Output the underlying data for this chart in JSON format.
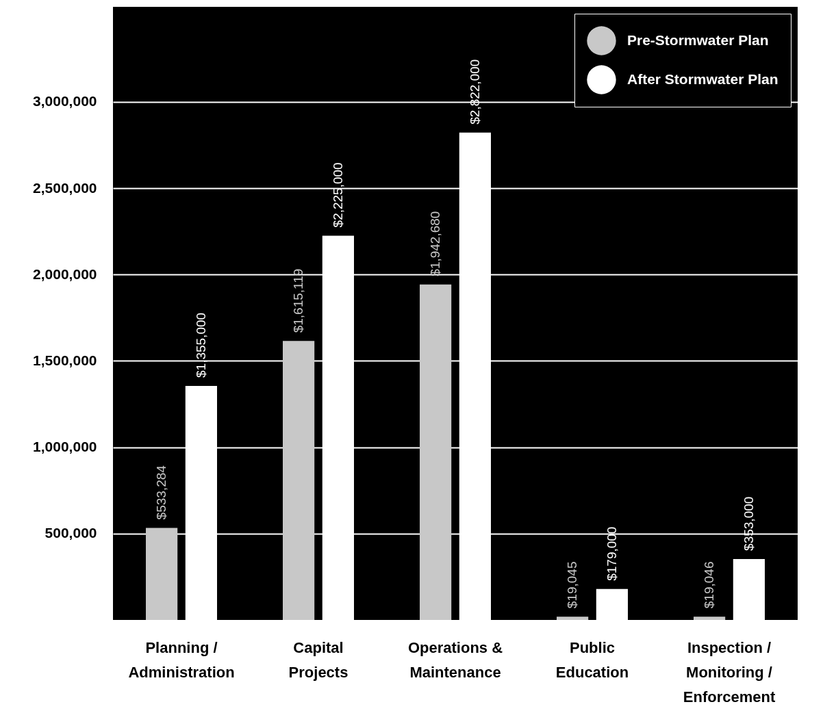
{
  "chart_data": {
    "type": "bar",
    "categories": [
      "Planning / Administration",
      "Capital Projects",
      "Operations & Maintenance",
      "Public Education",
      "Inspection / Monitoring / Enforcement"
    ],
    "series": [
      {
        "name": "Pre-Stormwater Plan",
        "color": "#c8c8c8",
        "values": [
          533284,
          1615119,
          1942680,
          19045,
          19046
        ],
        "value_labels": [
          "$533,284",
          "$1,615,119",
          "$1,942,680",
          "$19,045",
          "$19,046"
        ]
      },
      {
        "name": "After Stormwater Plan",
        "color": "#ffffff",
        "values": [
          1355000,
          2225000,
          2822000,
          179000,
          353000
        ],
        "value_labels": [
          "$1,355,000",
          "$2,225,000",
          "$2,822,000",
          "$179,000",
          "$353,000"
        ]
      }
    ],
    "ylim": [
      0,
      3550000
    ],
    "yticks": [
      {
        "value": 500000,
        "label": "500,000"
      },
      {
        "value": 1000000,
        "label": "1,000,000"
      },
      {
        "value": 1500000,
        "label": "1,500,000"
      },
      {
        "value": 2000000,
        "label": "2,000,000"
      },
      {
        "value": 2500000,
        "label": "2,500,000"
      },
      {
        "value": 3000000,
        "label": "3,000,000"
      }
    ],
    "grid": "y",
    "legend": "top right"
  }
}
